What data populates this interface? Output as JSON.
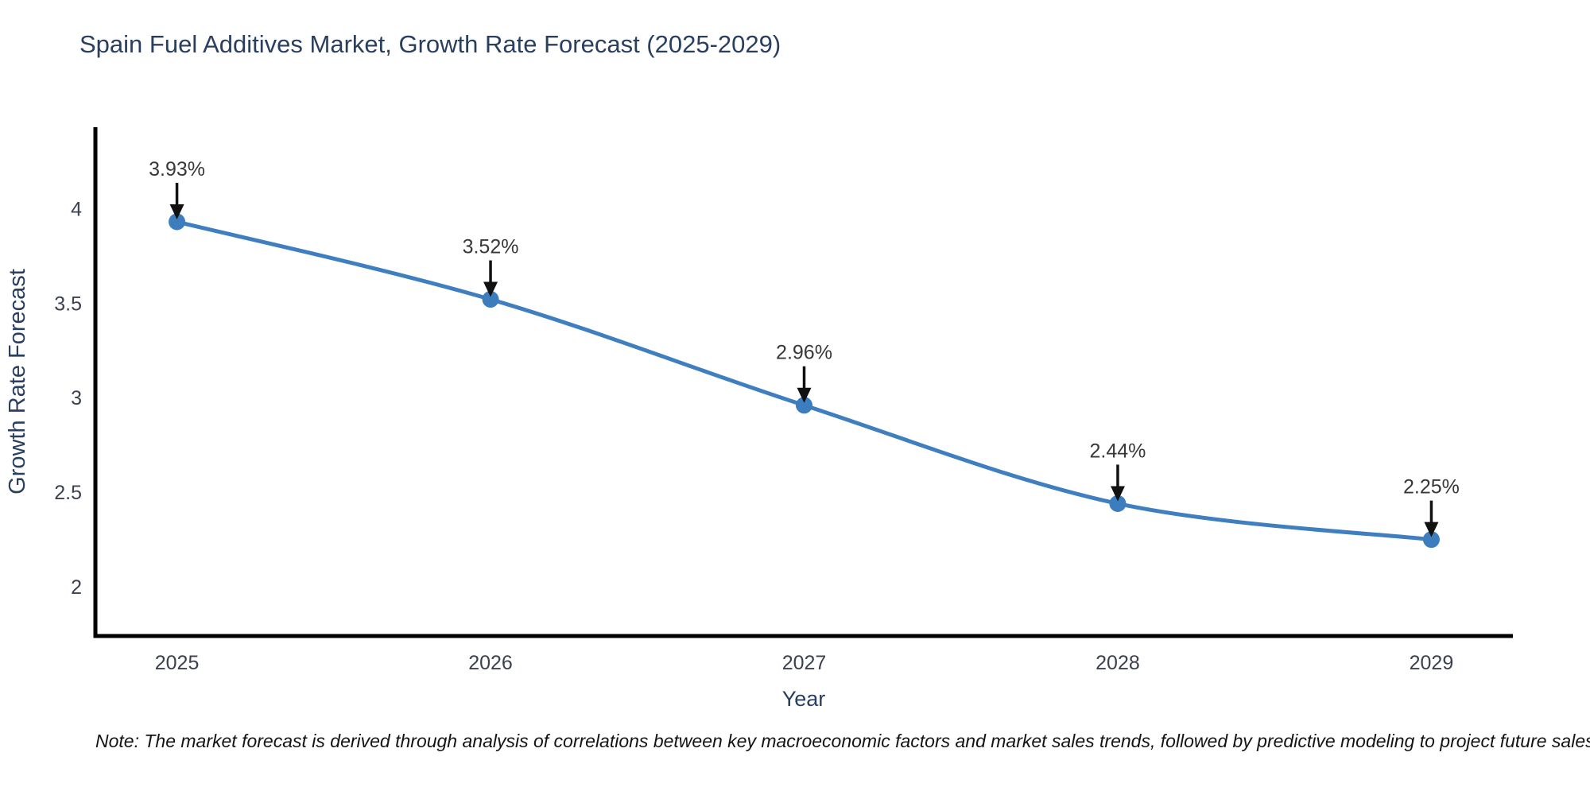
{
  "title": "Spain Fuel Additives Market, Growth Rate Forecast (2025-2029)",
  "note": "Note: The market forecast is derived through analysis of correlations between key macroeconomic factors and market sales trends, followed by predictive modeling to project future sales",
  "chart_data": {
    "type": "line",
    "title": "Spain Fuel Additives Market, Growth Rate Forecast (2025-2029)",
    "xlabel": "Year",
    "ylabel": "Growth Rate Forecast",
    "x": [
      2025,
      2026,
      2027,
      2028,
      2029
    ],
    "values": [
      3.93,
      3.52,
      2.96,
      2.44,
      2.25
    ],
    "point_labels": [
      "3.93%",
      "3.52%",
      "2.96%",
      "2.44%",
      "2.25%"
    ],
    "x_tick_labels": [
      "2025",
      "2026",
      "2027",
      "2028",
      "2029"
    ],
    "yticks": [
      2,
      2.5,
      3,
      3.5,
      4
    ],
    "ytick_labels": [
      "2",
      "2.5",
      "3",
      "3.5",
      "4"
    ],
    "ylim": [
      1.74,
      4.43
    ],
    "xlim": [
      2024.74,
      2029.26
    ],
    "grid": false,
    "legend": "none",
    "line_shape": "spline",
    "colors": {
      "line": "#3f7fbf",
      "marker": "#3b7dbd",
      "axis": "#000000",
      "tick_label": "#3c4150",
      "axis_title": "#2a3f5f",
      "chart_title": "#2a3f5f",
      "annotation_text": "#383838",
      "annotation_arrow": "#111111",
      "background": "#ffffff"
    }
  }
}
